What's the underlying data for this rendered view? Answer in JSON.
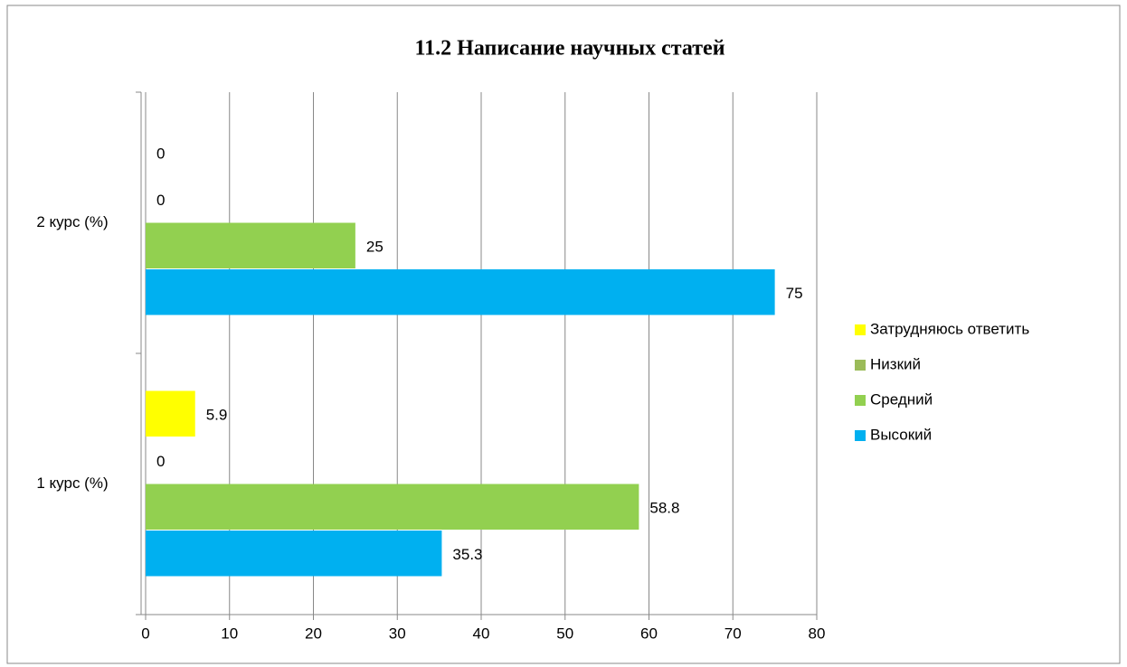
{
  "chart_data": {
    "type": "hbar",
    "title": "11.2 Написание научных статей",
    "categories": [
      "1 курс (%)",
      "2 курс (%)"
    ],
    "series": [
      {
        "name": "Высокий",
        "color": "#00b0f0",
        "values": [
          35.3,
          75
        ]
      },
      {
        "name": "Средний",
        "color": "#92d050",
        "values": [
          58.8,
          25
        ]
      },
      {
        "name": "Низкий",
        "color": "#9bbb59",
        "values": [
          0,
          0
        ]
      },
      {
        "name": "Затрудняюсь ответить",
        "color": "#ffff00",
        "values": [
          5.9,
          0
        ]
      }
    ],
    "xlim": [
      0,
      80
    ],
    "xticks": [
      0,
      10,
      20,
      30,
      40,
      50,
      60,
      70,
      80
    ],
    "grid": true,
    "legend": "right"
  }
}
